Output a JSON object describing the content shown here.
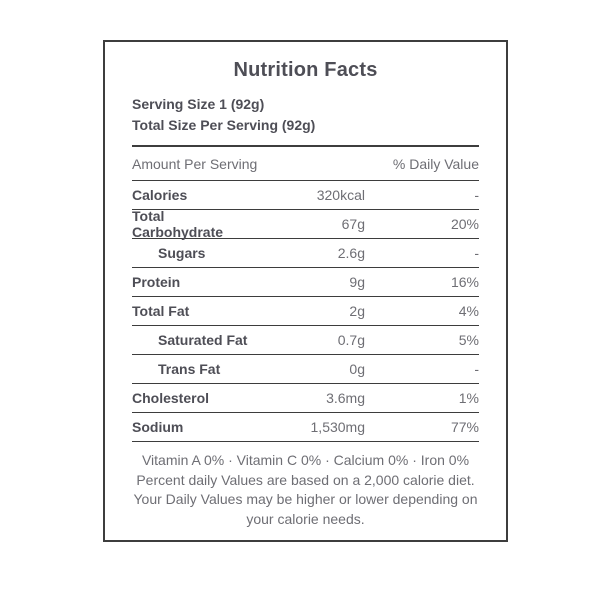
{
  "title": "Nutrition Facts",
  "serving": {
    "line1": "Serving Size 1 (92g)",
    "line2": "Total Size Per Serving (92g)"
  },
  "table": {
    "header": {
      "amount_label": "Amount Per Serving",
      "daily_value_label": "% Daily Value"
    },
    "rows": [
      {
        "name": "Calories",
        "amount": "320kcal",
        "dv": "-",
        "indent": false
      },
      {
        "name": "Total Carbohydrate",
        "amount": "67g",
        "dv": "20%",
        "indent": false
      },
      {
        "name": "Sugars",
        "amount": "2.6g",
        "dv": "-",
        "indent": true
      },
      {
        "name": "Protein",
        "amount": "9g",
        "dv": "16%",
        "indent": false
      },
      {
        "name": "Total Fat",
        "amount": "2g",
        "dv": "4%",
        "indent": false
      },
      {
        "name": "Saturated Fat",
        "amount": "0.7g",
        "dv": "5%",
        "indent": true
      },
      {
        "name": "Trans Fat",
        "amount": "0g",
        "dv": "-",
        "indent": true
      },
      {
        "name": "Cholesterol",
        "amount": "3.6mg",
        "dv": "1%",
        "indent": false
      },
      {
        "name": "Sodium",
        "amount": "1,530mg",
        "dv": "77%",
        "indent": false
      }
    ]
  },
  "footer": {
    "vitamins": "Vitamin A 0% · Vitamin C 0% · Calcium 0% · Iron 0%",
    "disclaimer": "Percent daily Values are based on a 2,000 calorie diet. Your Daily Values may be higher or lower depending on your calorie needs."
  },
  "colors": {
    "border": "#3d3d3d",
    "dark_text": "#4e4e56",
    "gray_text": "#6e6e74",
    "background": "#ffffff"
  }
}
